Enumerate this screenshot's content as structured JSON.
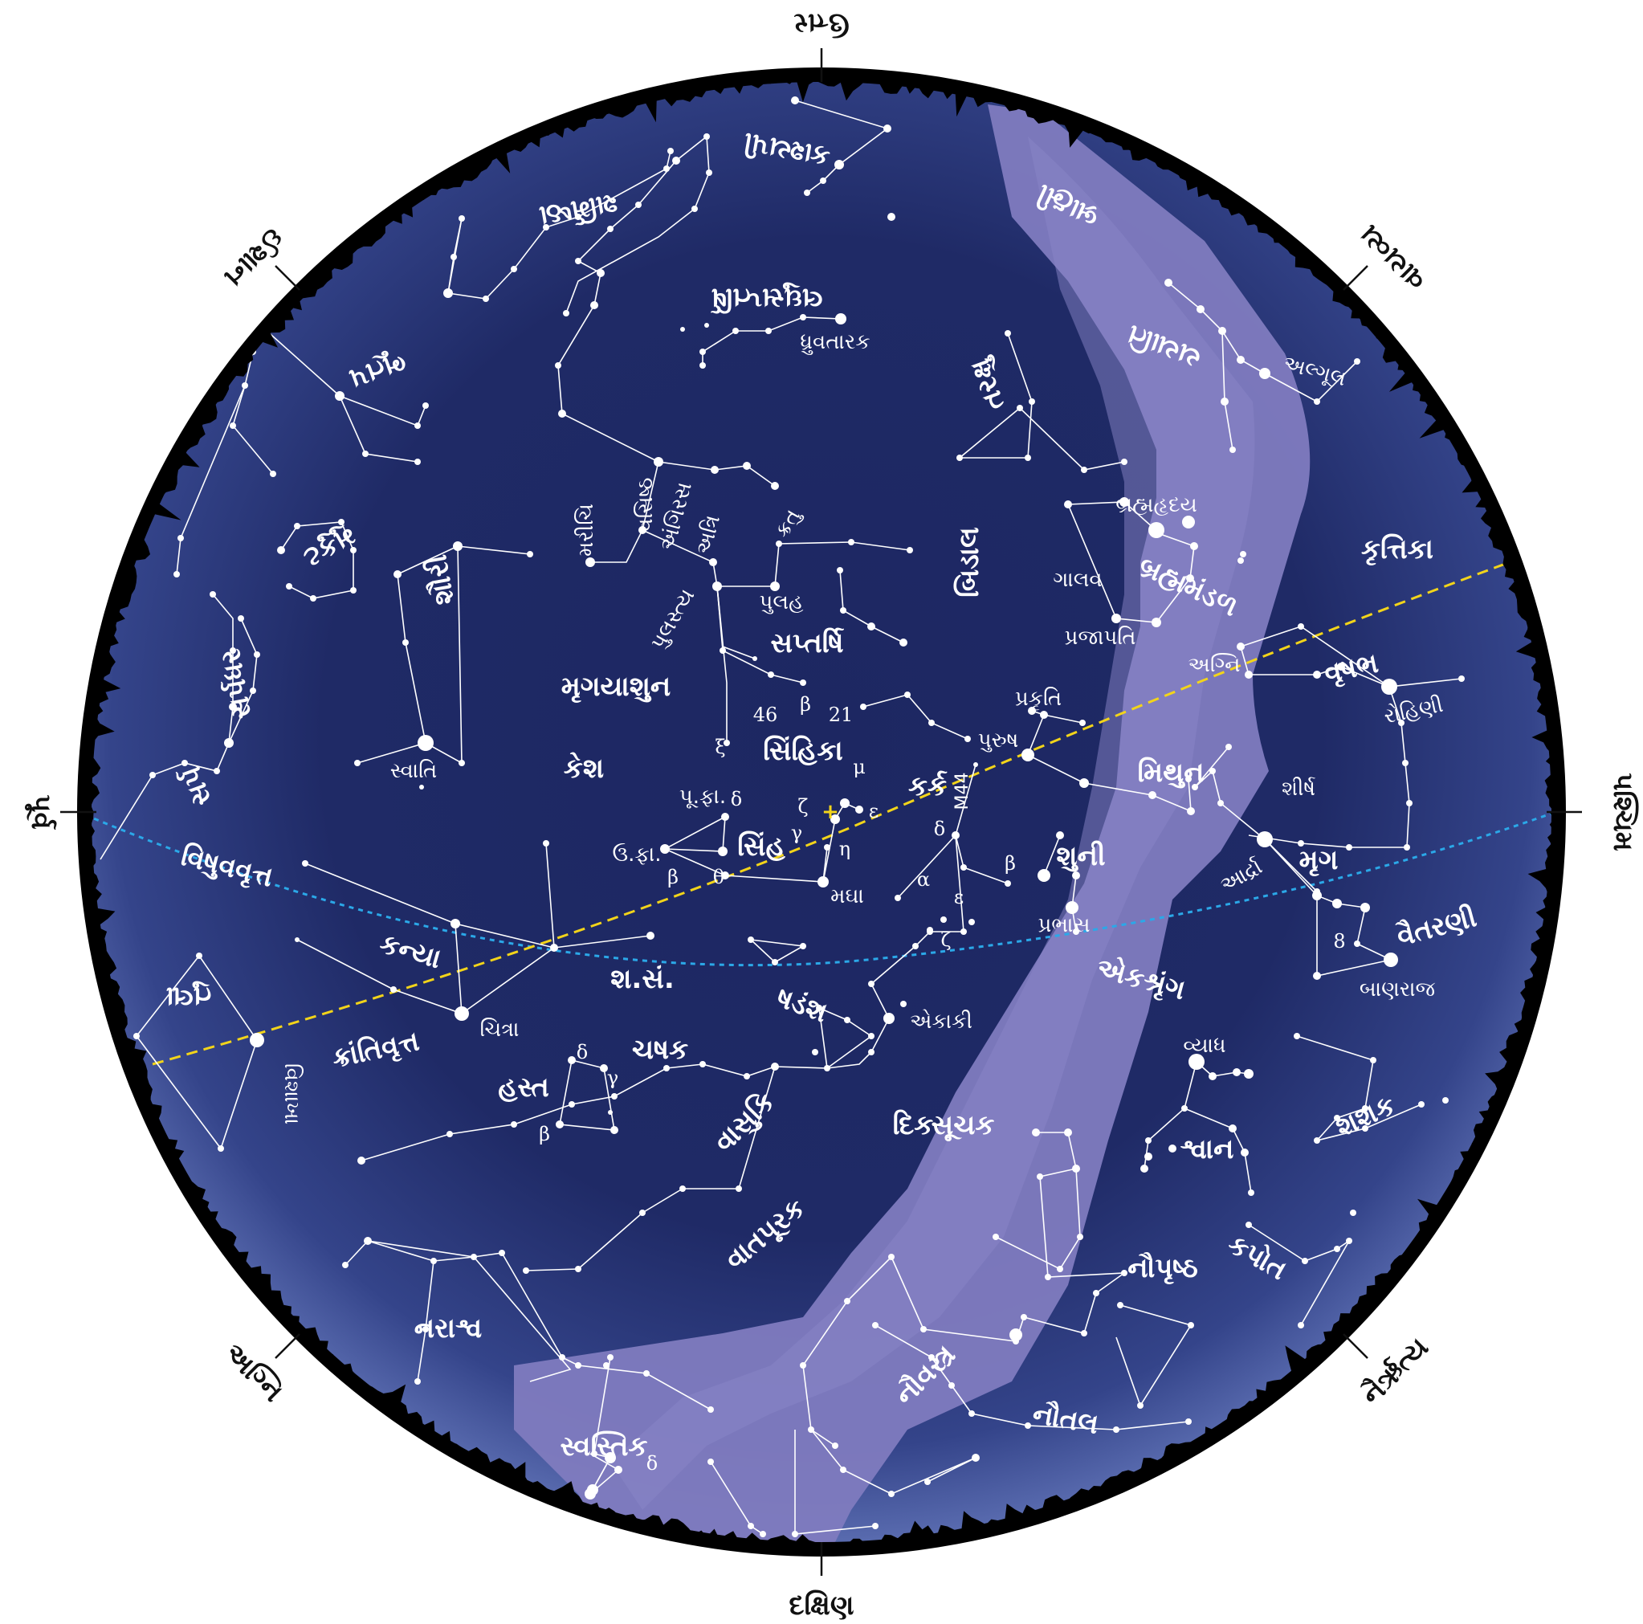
{
  "directions": {
    "north": "ઉત્તર",
    "south": "દક્ષિણ",
    "east": "પૂર્વ",
    "west": "પશ્ચિમ",
    "northeast": "ઈશાન",
    "northwest": "વાયવ્ય",
    "southeast": "અગ્નિ",
    "southwest": "નૈર્ઋત્ય"
  },
  "lines": {
    "equator": "વિષુવવૃત્ત",
    "ecliptic": "ક્રાંતિવૃત્ત"
  },
  "constellations": {
    "lyra_pole": "ધ્રુવતારક",
    "saptarshi": "સપ્તર્ષિ",
    "mrugvyadh": "મૃગયાશુન",
    "kesh": "કેશ",
    "sinhika": "સિંહિકા",
    "sinh": "સિંહ",
    "kark": "કર્ક",
    "mithun": "મિથુન",
    "shuni": "શુની",
    "prabhas": "પ્રભાસ",
    "kanya": "કન્યા",
    "chitra": "ચિત્રા",
    "sh_san": "શ.સં.",
    "shadansh": "ષડંશ",
    "ekaki": "એકાકી",
    "chashak": "ચષક",
    "hast": "હસ્ત",
    "vasuki": "વાસુકિ",
    "dikshuchak": "દિક્સૂચક",
    "vatpurak": "વાતપૂરક",
    "narashv": "નરાશ્વ",
    "swastik": "સ્વસ્તિક",
    "nauvastra": "નૌવસ્ત્ર",
    "nautal": "નૌતલ",
    "nauprushth": "નૌપૃષ્ઠ",
    "kapot": "કપોત",
    "shwan": "શ્વાન",
    "vyadh": "વ્યાધ",
    "shashak": "શશક",
    "ekshrung": "એકશ્રૃંગ",
    "ardra": "આર્દ્રા",
    "mrug": "મૃગ",
    "shirsh": "શીર્ષ",
    "vaitarni": "વૈતરણી",
    "banraj": "બાણરાજ",
    "vrushabh": "વૃષભ",
    "rohini": "રોહિણી",
    "krutika": "કૃત્તિકા",
    "agni_star": "અગ્નિ",
    "prajapati": "પ્રજાપતિ",
    "galav": "ગાલવ",
    "brahmamandal": "બ્રહ્મમંડળ",
    "brahmahruday": "બ્રહ્મહૃદય",
    "bidal": "બિડાલ",
    "prakruti": "પ્રકૃતિ",
    "purush": "પુરુષ",
    "swati": "સ્વાતિ",
    "vishakha": "વિશાખા",
    "tula": "તુલા",
    "marichi": "મરીચિ",
    "vasishth": "વસિષ્ઠ",
    "angiras": "અંગિરસ",
    "atri": "અત્રિ",
    "kratu": "ક્રતુ",
    "pulastya": "પુલસ્ત્ય",
    "pulah": "પુલહ",
    "magha": "મઘા",
    "p_fa": "પૂ.ફા.",
    "u_fa": "ઉ.ફા.",
    "m44": "M44",
    "alpul": "અલ્ગૂલ",
    "yayati": "યયાતિ",
    "brahmi": "બ્રાહ્મી",
    "kashyapi": "કાશ્યપી",
    "sharmishtha": "શર્મિષ્ઠા",
    "laghusaptarshi": "લઘુસપ્તર્ષિ",
    "tarakshu": "તરક્ષુ",
    "shauri": "શૌરી",
    "bhutap": "ભૂતપ",
    "mukut": "મુકુટ",
    "sarpdhar": "સર્પધર",
    "sarp": "સર્પ",
    "dhruvmatsya": "ધ્રુવમત્સ્ય",
    "num46": "46",
    "num21": "21"
  },
  "greek": {
    "alpha": "α",
    "beta": "β",
    "gamma": "γ",
    "delta": "δ",
    "epsilon": "ε",
    "zeta": "ζ",
    "eta": "η",
    "theta": "θ",
    "mu": "μ",
    "xi": "ξ",
    "plus": "+",
    "pi": "8"
  },
  "colors": {
    "sky_dark": "#1d2762",
    "sky_edge": "#4a5ca0",
    "milky_way": "#7f7bbf",
    "horizon": "#000000",
    "equator": "#2ba8e8",
    "ecliptic": "#f2d41a"
  }
}
